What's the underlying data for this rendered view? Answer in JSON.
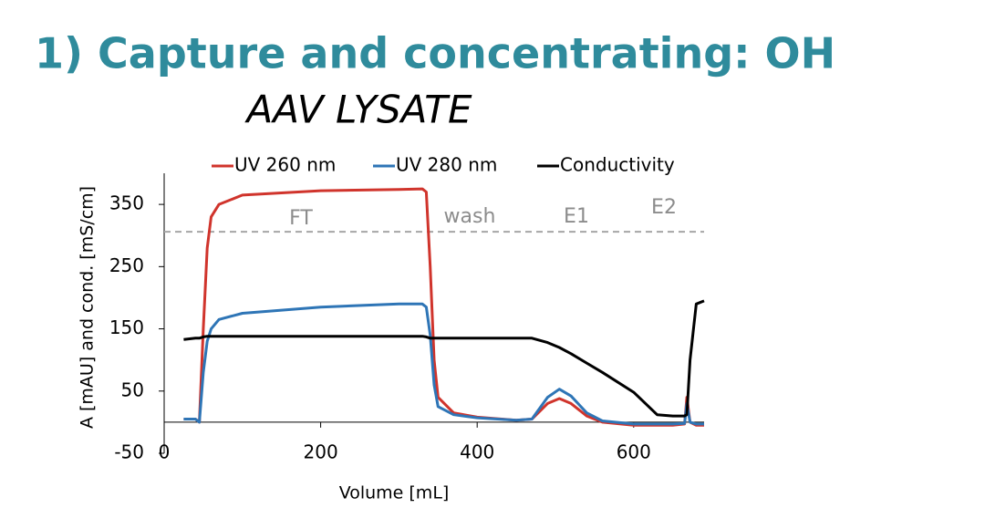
{
  "chart_data": {
    "type": "line",
    "title": "1) Capture and concentrating: OH",
    "subtitle": "AAV LYSATE",
    "x_label": "Volume [mL]",
    "y_label": "A [mAU] and cond. [mS/cm]",
    "annotations": [
      "FT",
      "wash",
      "E1",
      "E2"
    ],
    "hline": 306,
    "x": [
      25,
      40,
      45,
      50,
      55,
      60,
      70,
      100,
      200,
      300,
      330,
      335,
      340,
      345,
      350,
      370,
      400,
      450,
      470,
      490,
      505,
      520,
      540,
      560,
      600,
      630,
      650,
      665,
      668,
      672,
      680,
      690
    ],
    "series": [
      {
        "name": "UV 260 nm",
        "color": "#d0342c",
        "values": [
          5,
          5,
          0,
          150,
          280,
          330,
          350,
          365,
          372,
          374,
          375,
          370,
          250,
          100,
          40,
          15,
          8,
          3,
          5,
          30,
          38,
          30,
          10,
          0,
          -5,
          -5,
          -5,
          -3,
          40,
          0,
          -5,
          -5
        ]
      },
      {
        "name": "UV 280 nm",
        "color": "#2e75b6",
        "values": [
          5,
          5,
          0,
          80,
          130,
          150,
          165,
          175,
          185,
          190,
          190,
          185,
          140,
          60,
          25,
          12,
          7,
          3,
          5,
          40,
          53,
          42,
          15,
          2,
          -3,
          -3,
          -3,
          -2,
          30,
          0,
          -3,
          -3
        ]
      },
      {
        "name": "Conductivity",
        "color": "#000000",
        "values": [
          133,
          135,
          135,
          137,
          138,
          138,
          138,
          138,
          138,
          138,
          138,
          137,
          135,
          135,
          135,
          135,
          135,
          135,
          135,
          128,
          120,
          110,
          95,
          80,
          48,
          12,
          10,
          10,
          12,
          100,
          190,
          195
        ]
      }
    ],
    "xlim": [
      0,
      690
    ],
    "xticks": [
      0,
      200,
      400,
      600
    ],
    "ylim": [
      -50,
      400
    ],
    "yticks": [
      -50,
      50,
      150,
      250,
      350
    ],
    "legend": "top"
  }
}
